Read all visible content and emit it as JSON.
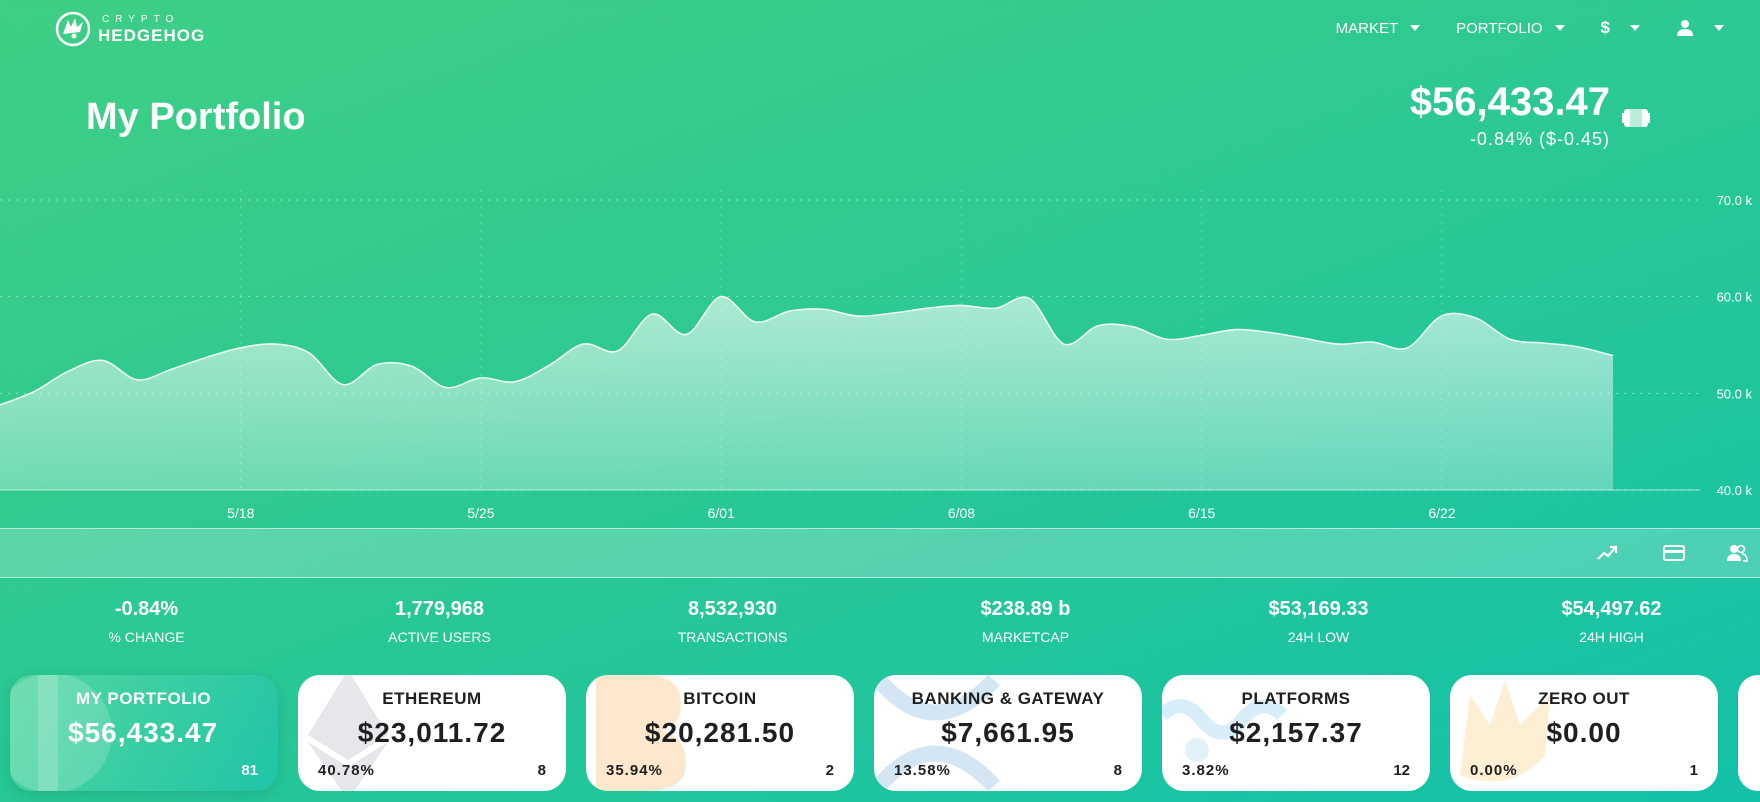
{
  "logo": {
    "line1": "CRYPTO",
    "line2": "HEDGEHOG"
  },
  "nav": {
    "market": "MARKET",
    "portfolio": "PORTFOLIO",
    "currency": "$"
  },
  "page_title": "My Portfolio",
  "total": {
    "value": "$56,433.47",
    "change": "-0.84% ($-0.45)"
  },
  "chart_data": {
    "type": "area",
    "x": [
      "5/11",
      "5/12",
      "5/13",
      "5/14",
      "5/15",
      "5/16",
      "5/17",
      "5/18",
      "5/19",
      "5/20",
      "5/21",
      "5/22",
      "5/23",
      "5/24",
      "5/25",
      "5/26",
      "5/27",
      "5/28",
      "5/29",
      "5/30",
      "5/31",
      "6/01",
      "6/02",
      "6/03",
      "6/04",
      "6/05",
      "6/06",
      "6/07",
      "6/08",
      "6/09",
      "6/10",
      "6/11",
      "6/12",
      "6/13",
      "6/14",
      "6/15",
      "6/16",
      "6/17",
      "6/18",
      "6/19",
      "6/20",
      "6/21",
      "6/22",
      "6/23",
      "6/24",
      "6/25",
      "6/26",
      "6/27"
    ],
    "y": [
      48.8,
      50.2,
      52.3,
      53.4,
      51.4,
      52.5,
      53.7,
      54.7,
      55.1,
      54.2,
      50.9,
      53.0,
      52.8,
      50.6,
      51.6,
      51.2,
      52.9,
      55.1,
      54.4,
      58.2,
      56.1,
      60.0,
      57.4,
      58.5,
      58.7,
      58.0,
      58.3,
      58.8,
      59.1,
      58.8,
      59.8,
      55.1,
      57.0,
      56.9,
      55.6,
      56.0,
      56.6,
      56.3,
      55.7,
      55.1,
      55.3,
      54.7,
      58.0,
      57.8,
      55.6,
      55.2,
      54.8,
      53.9
    ],
    "xticks": [
      "5/18",
      "5/25",
      "6/01",
      "6/08",
      "6/15",
      "6/22"
    ],
    "yticks": [
      "40.0 k",
      "50.0 k",
      "60.0 k",
      "70.0 k"
    ],
    "ylim": [
      40,
      70
    ],
    "grid": true
  },
  "stats": [
    {
      "value": "-0.84%",
      "label": "% CHANGE"
    },
    {
      "value": "1,779,968",
      "label": "ACTIVE USERS"
    },
    {
      "value": "8,532,930",
      "label": "TRANSACTIONS"
    },
    {
      "value": "$238.89 b",
      "label": "MARKETCAP"
    },
    {
      "value": "$53,169.33",
      "label": "24H LOW"
    },
    {
      "value": "$54,497.62",
      "label": "24H HIGH"
    }
  ],
  "cards": [
    {
      "name": "MY PORTFOLIO",
      "value": "$56,433.47",
      "pct": "",
      "count": "81",
      "icon": "portfolio-icon",
      "color": "#ffffff"
    },
    {
      "name": "ETHEREUM",
      "value": "$23,011.72",
      "pct": "40.78%",
      "count": "8",
      "icon": "ethereum-icon",
      "color": "#8c8ca3"
    },
    {
      "name": "BITCOIN",
      "value": "$20,281.50",
      "pct": "35.94%",
      "count": "2",
      "icon": "bitcoin-icon",
      "color": "#f7931a"
    },
    {
      "name": "BANKING & GATEWAY",
      "value": "$7,661.95",
      "pct": "13.58%",
      "count": "8",
      "icon": "ripple-icon",
      "color": "#2a7fc8"
    },
    {
      "name": "PLATFORMS",
      "value": "$2,157.37",
      "pct": "3.82%",
      "count": "12",
      "icon": "platforms-icon",
      "color": "#35a7e6"
    },
    {
      "name": "ZERO OUT",
      "value": "$0.00",
      "pct": "0.00%",
      "count": "1",
      "icon": "hedgehog-icon",
      "color": "#f5b73b"
    }
  ]
}
